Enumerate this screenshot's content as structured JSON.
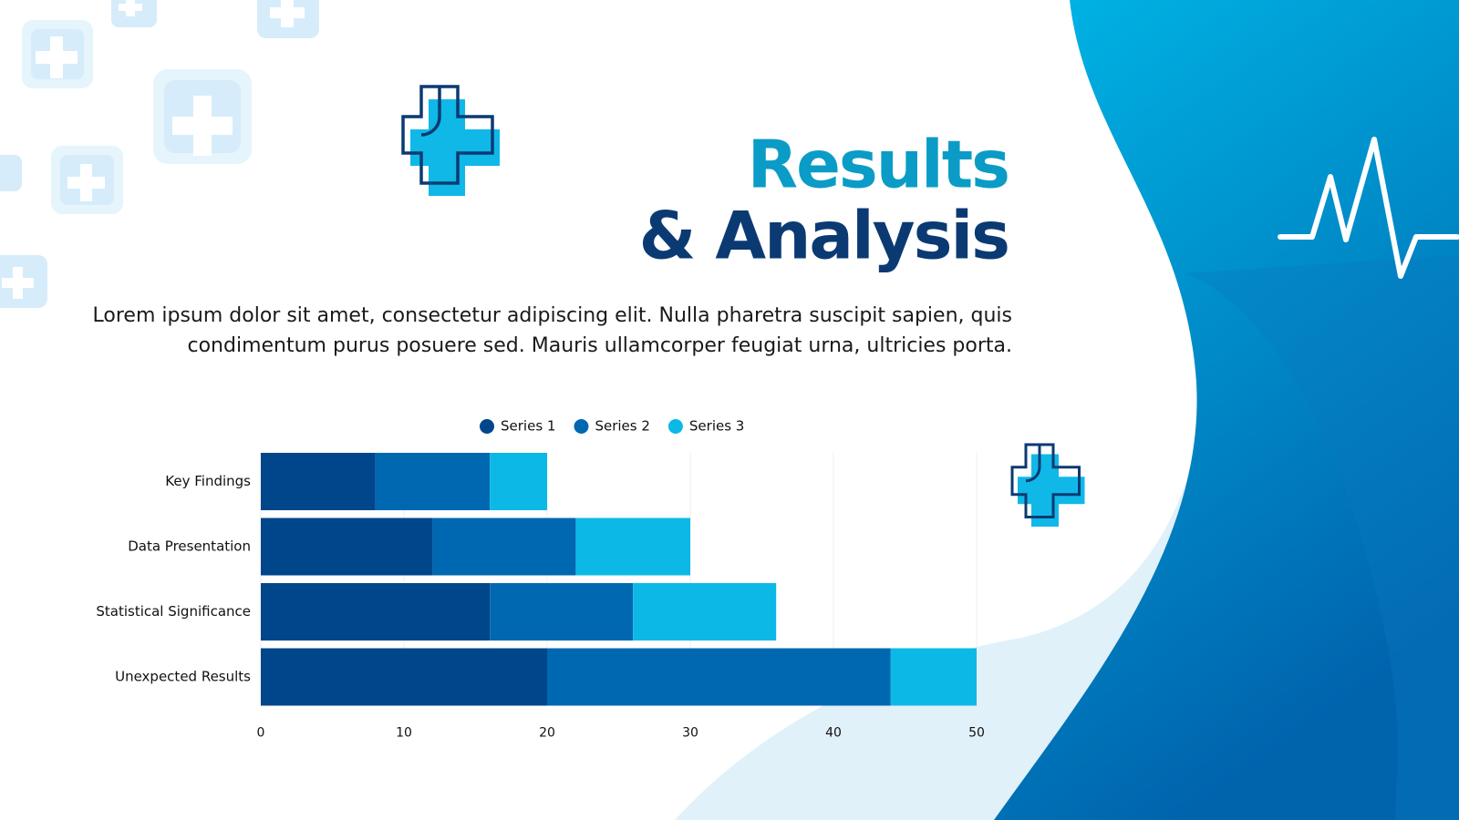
{
  "chart_data": {
    "type": "stacked_barh",
    "title": "Results",
    "title_line2": "& Analysis",
    "subtitle": "Lorem ipsum dolor sit amet, consectetur adipiscing elit. Nulla pharetra suscipit sapien, quis condimentum purus posuere sed. Mauris ullamcorper feugiat urna, ultricies porta.",
    "categories": [
      "Key Findings",
      "Data Presentation",
      "Statistical Significance",
      "Unexpected Results"
    ],
    "series": [
      {
        "name": "Series 1",
        "color": "#00468b",
        "values": [
          8,
          12,
          16,
          20
        ]
      },
      {
        "name": "Series 2",
        "color": "#0068b1",
        "values": [
          8,
          10,
          10,
          24
        ]
      },
      {
        "name": "Series 3",
        "color": "#0cb9e6",
        "values": [
          4,
          8,
          10,
          6
        ]
      }
    ],
    "xlim": [
      0,
      50
    ],
    "xticks": [
      0,
      10,
      20,
      30,
      40,
      50
    ],
    "grid": true,
    "legend": "top"
  }
}
